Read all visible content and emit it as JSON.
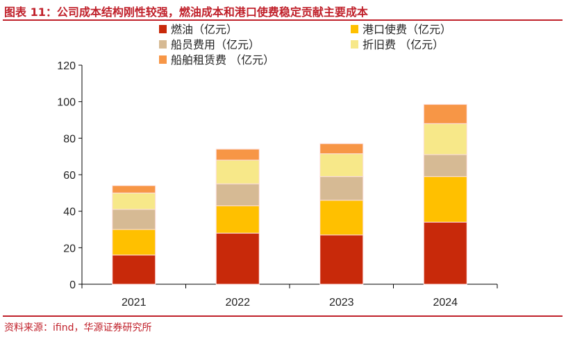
{
  "title": "图表 11：公司成本结构刚性较强，燃油成本和港口使费稳定贡献主要成本",
  "source": "资料来源：ifind，华源证券研究所",
  "chart_data": {
    "type": "bar",
    "stacked": true,
    "categories": [
      "2021",
      "2022",
      "2023",
      "2024"
    ],
    "ylim": [
      0,
      120
    ],
    "yticks": [
      0,
      20,
      40,
      60,
      80,
      100,
      120
    ],
    "grid": false,
    "legend_position": "top",
    "series": [
      {
        "name": "燃油（亿元）",
        "color": "#c8290a",
        "values": [
          16,
          28,
          27,
          34
        ]
      },
      {
        "name": "港口使费（亿元）",
        "color": "#ffc000",
        "values": [
          14,
          15,
          19,
          25
        ]
      },
      {
        "name": "船员费用（亿元）",
        "color": "#d6ba94",
        "values": [
          11,
          12,
          13,
          12
        ]
      },
      {
        "name": "折旧费 （亿元）",
        "color": "#f7e889",
        "values": [
          9,
          13,
          12.5,
          17
        ]
      },
      {
        "name": "船舶租赁费 （亿元）",
        "color": "#f79646",
        "values": [
          4,
          6,
          5.5,
          10.5
        ]
      }
    ]
  }
}
